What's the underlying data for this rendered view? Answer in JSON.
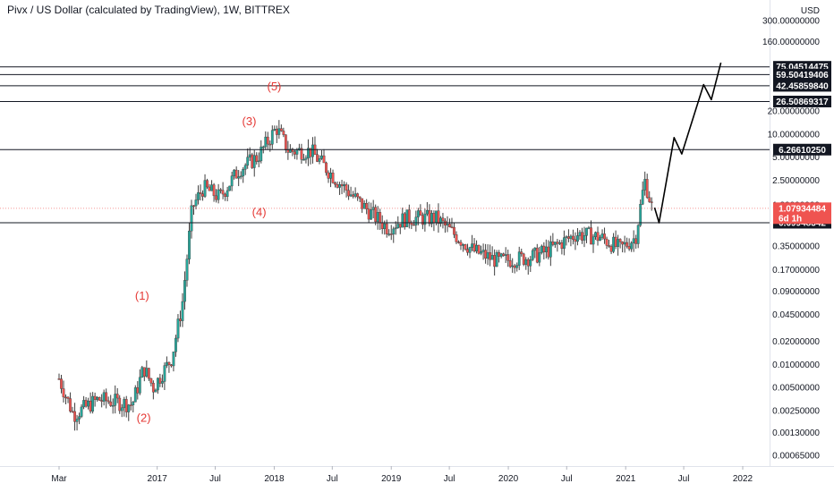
{
  "header": {
    "title": "Pivx / US Dollar (calculated by TradingView), 1W, BITTREX"
  },
  "colors": {
    "up": "#26a69a",
    "down": "#ef5350",
    "candle": "#3f3f3f",
    "hline": "#131722",
    "last_price": "#ef5350",
    "wave_label": "#e53935",
    "axis_text": "#131722"
  },
  "chart_data": {
    "type": "candlestick",
    "title": "Pivx / US Dollar (calculated by TradingView), 1W, BITTREX",
    "y_scale": "log",
    "y_unit": "USD",
    "ylim": [
      0.0005,
      500
    ],
    "x_range": [
      "2016-02-15",
      "2022-05-01"
    ],
    "grid": false,
    "y_ticks": [
      {
        "value": 300,
        "label": "300.00000000"
      },
      {
        "value": 160,
        "label": "160.00000000"
      },
      {
        "value": 20,
        "label": "20.00000000"
      },
      {
        "value": 10,
        "label": "10.00000000"
      },
      {
        "value": 5,
        "label": "5.00000000"
      },
      {
        "value": 2.5,
        "label": "2.50000000"
      },
      {
        "value": 1.2,
        "label": "1.20000000"
      },
      {
        "value": 0.35,
        "label": "0.35000000"
      },
      {
        "value": 0.17,
        "label": "0.17000000"
      },
      {
        "value": 0.09,
        "label": "0.09000000"
      },
      {
        "value": 0.045,
        "label": "0.04500000"
      },
      {
        "value": 0.02,
        "label": "0.02000000"
      },
      {
        "value": 0.01,
        "label": "0.01000000"
      },
      {
        "value": 0.005,
        "label": "0.00500000"
      },
      {
        "value": 0.0025,
        "label": "0.00250000"
      },
      {
        "value": 0.0013,
        "label": "0.00130000"
      },
      {
        "value": 0.00065,
        "label": "0.00065000"
      }
    ],
    "x_ticks": [
      {
        "date": "2016-03-01",
        "label": "Mar"
      },
      {
        "date": "2017-01-01",
        "label": "2017"
      },
      {
        "date": "2017-07-01",
        "label": "Jul"
      },
      {
        "date": "2018-01-01",
        "label": "2018"
      },
      {
        "date": "2018-07-01",
        "label": "Jul"
      },
      {
        "date": "2019-01-01",
        "label": "2019"
      },
      {
        "date": "2019-07-01",
        "label": "Jul"
      },
      {
        "date": "2020-01-01",
        "label": "2020"
      },
      {
        "date": "2020-07-01",
        "label": "Jul"
      },
      {
        "date": "2021-01-01",
        "label": "2021"
      },
      {
        "date": "2021-07-01",
        "label": "Jul"
      },
      {
        "date": "2022-01-01",
        "label": "2022"
      }
    ],
    "price_anchors": [
      {
        "date": "2016-03-01",
        "price": 0.0065
      },
      {
        "date": "2016-04-15",
        "price": 0.0022
      },
      {
        "date": "2016-07-01",
        "price": 0.0035
      },
      {
        "date": "2016-10-15",
        "price": 0.003
      },
      {
        "date": "2016-11-20",
        "price": 0.009
      },
      {
        "date": "2016-12-20",
        "price": 0.005
      },
      {
        "date": "2017-02-15",
        "price": 0.012
      },
      {
        "date": "2017-03-20",
        "price": 0.06
      },
      {
        "date": "2017-04-20",
        "price": 1.1
      },
      {
        "date": "2017-05-25",
        "price": 2.0
      },
      {
        "date": "2017-07-15",
        "price": 1.5
      },
      {
        "date": "2017-09-15",
        "price": 3.5
      },
      {
        "date": "2017-11-10",
        "price": 5.0
      },
      {
        "date": "2018-01-08",
        "price": 12.0
      },
      {
        "date": "2018-02-15",
        "price": 6.0
      },
      {
        "date": "2018-04-25",
        "price": 6.0
      },
      {
        "date": "2018-07-15",
        "price": 2.5
      },
      {
        "date": "2018-10-01",
        "price": 1.2
      },
      {
        "date": "2018-12-20",
        "price": 0.6
      },
      {
        "date": "2019-02-15",
        "price": 0.8
      },
      {
        "date": "2019-05-20",
        "price": 0.8
      },
      {
        "date": "2019-09-15",
        "price": 0.3
      },
      {
        "date": "2019-12-01",
        "price": 0.22
      },
      {
        "date": "2020-03-15",
        "price": 0.25
      },
      {
        "date": "2020-05-01",
        "price": 0.3
      },
      {
        "date": "2020-08-01",
        "price": 0.5
      },
      {
        "date": "2020-10-15",
        "price": 0.45
      },
      {
        "date": "2020-12-15",
        "price": 0.32
      },
      {
        "date": "2021-02-01",
        "price": 0.45
      },
      {
        "date": "2021-03-01",
        "price": 2.5
      },
      {
        "date": "2021-03-25",
        "price": 1.08
      }
    ],
    "horizontal_lines": [
      {
        "value": 75.04514475,
        "label": "75.04514475"
      },
      {
        "value": 59.50419406,
        "label": "59.50419406"
      },
      {
        "value": 42.4585984,
        "label": "42.45859840"
      },
      {
        "value": 26.50869317,
        "label": "26.50869317"
      },
      {
        "value": 6.2661025,
        "label": "6.26610250"
      },
      {
        "value": 0.69948342,
        "label": "0.69948342"
      }
    ],
    "last_price": {
      "value": 1.07934484,
      "label": "1.07934484",
      "countdown": "6d 1h"
    },
    "forecast_path": [
      {
        "date": "2021-04-01",
        "price": 1.1
      },
      {
        "date": "2021-04-15",
        "price": 0.7
      },
      {
        "date": "2021-06-01",
        "price": 9.0
      },
      {
        "date": "2021-06-25",
        "price": 5.5
      },
      {
        "date": "2021-09-01",
        "price": 44.0
      },
      {
        "date": "2021-09-25",
        "price": 28.0
      },
      {
        "date": "2021-10-25",
        "price": 85.0
      }
    ],
    "wave_labels": [
      {
        "label": "(1)",
        "date": "2016-11-15",
        "price": 0.07
      },
      {
        "label": "(2)",
        "date": "2016-11-20",
        "price": 0.0018
      },
      {
        "label": "(3)",
        "date": "2017-10-15",
        "price": 13.0
      },
      {
        "label": "(4)",
        "date": "2017-11-15",
        "price": 0.85
      },
      {
        "label": "(5)",
        "date": "2018-01-01",
        "price": 37.0
      }
    ]
  }
}
